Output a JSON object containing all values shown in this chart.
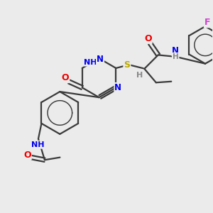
{
  "bg_color": "#ebebeb",
  "atom_colors": {
    "C": "#3a3a3a",
    "N": "#0000ee",
    "O": "#ee0000",
    "S": "#bbaa00",
    "F": "#cc44cc",
    "H": "#888888"
  },
  "bond_color": "#3a3a3a",
  "bond_width": 1.6,
  "figsize": [
    3.0,
    3.0
  ],
  "dpi": 100,
  "xlim": [
    0,
    10
  ],
  "ylim": [
    0,
    10
  ]
}
